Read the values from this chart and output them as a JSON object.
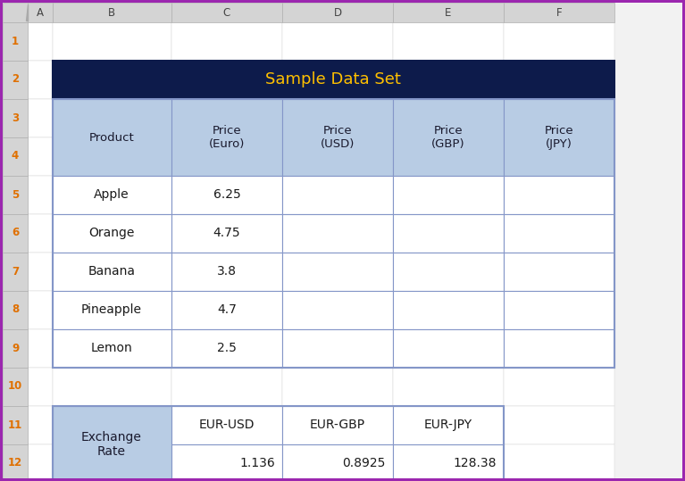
{
  "title": "Sample Data Set",
  "title_bg": "#0D1B4B",
  "title_color": "#FFC000",
  "header_bg": "#B8CCE4",
  "cell_bg": "#FFFFFF",
  "border_color": "#8496C8",
  "spreadsheet_bg": "#F2F2F2",
  "col_header_bg": "#D4D4D4",
  "row_header_bg": "#D4D4D4",
  "row_num_color": "#E07000",
  "col_labels": [
    "A",
    "B",
    "C",
    "D",
    "E",
    "F"
  ],
  "row_labels": [
    "1",
    "2",
    "3",
    "4",
    "5",
    "6",
    "7",
    "8",
    "9",
    "10",
    "11",
    "12"
  ],
  "main_table_headers": [
    "Product",
    "Price\n(Euro)",
    "Price\n(USD)",
    "Price\n(GBP)",
    "Price\n(JPY)"
  ],
  "main_table_data": [
    [
      "Apple",
      "6.25"
    ],
    [
      "Orange",
      "4.75"
    ],
    [
      "Banana",
      "3.8"
    ],
    [
      "Pineapple",
      "4.7"
    ],
    [
      "Lemon",
      "2.5"
    ]
  ],
  "exchange_headers": [
    "Exchange\nRate",
    "EUR-USD",
    "EUR-GBP",
    "EUR-JPY"
  ],
  "exchange_values": [
    "1.136",
    "0.8925",
    "128.38"
  ],
  "purple_border": "#9B27AF",
  "font_color": "#1A1A1A"
}
